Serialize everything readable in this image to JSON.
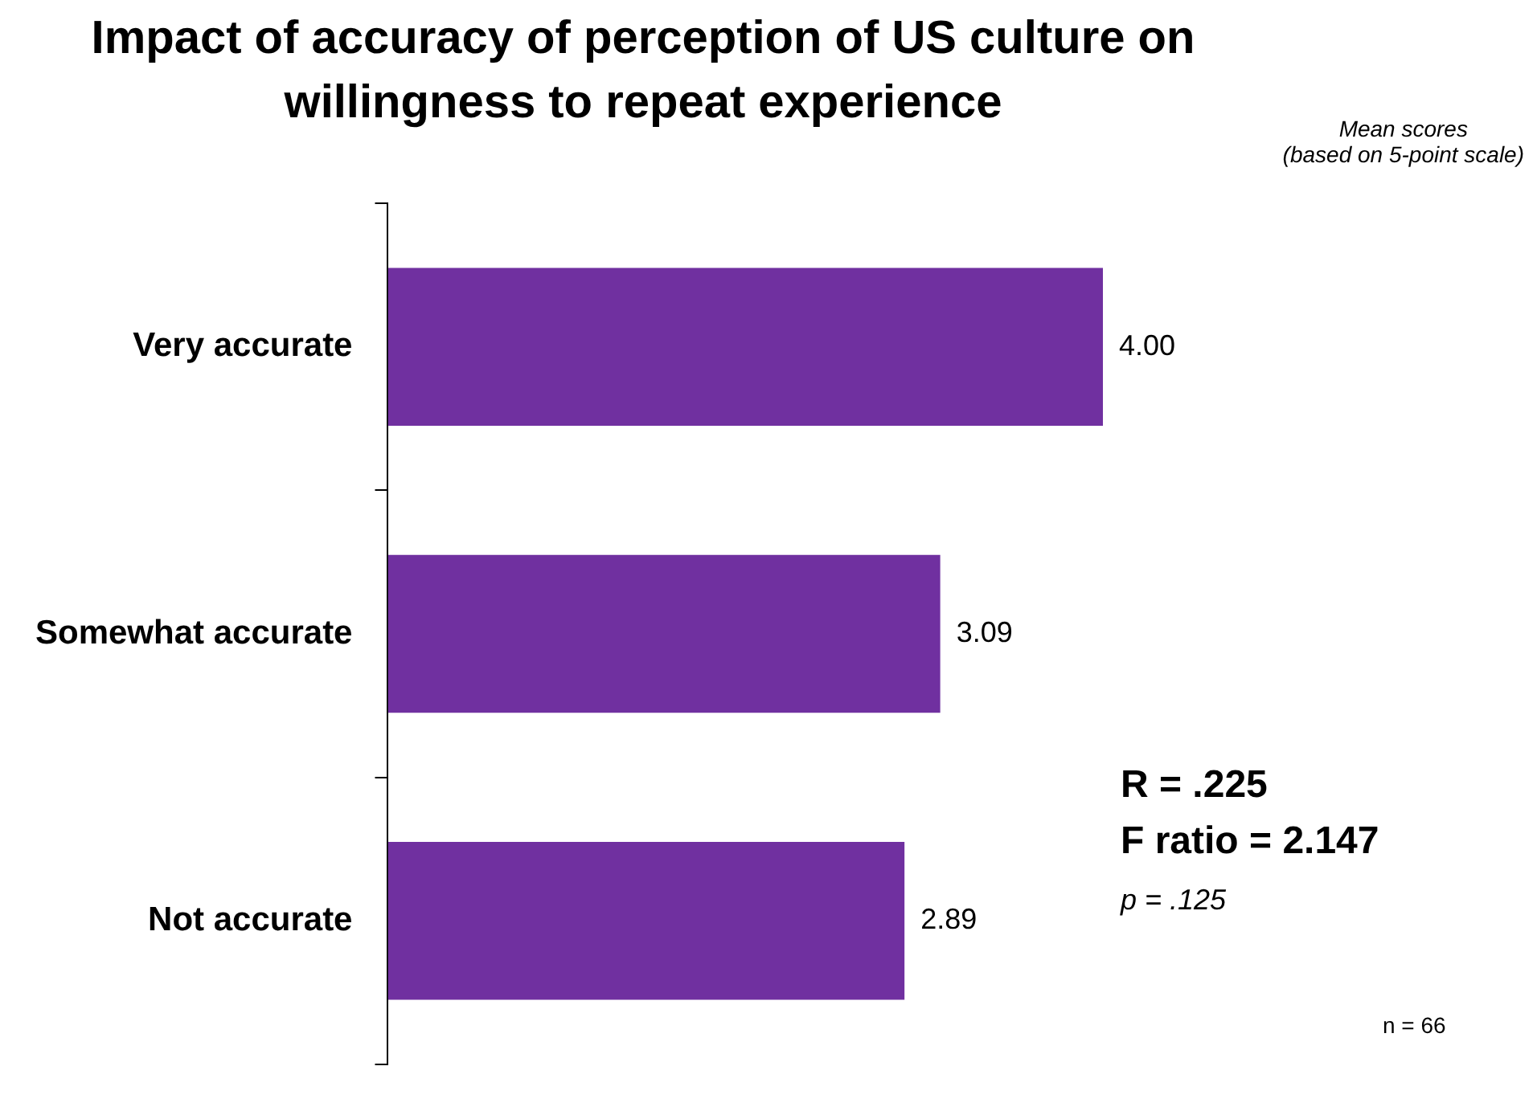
{
  "chart_data": {
    "type": "bar",
    "orientation": "horizontal",
    "title": "Impact of accuracy of perception of US culture on willingness to repeat experience",
    "subtitle": "Mean scores\n(based on 5-point scale)",
    "categories": [
      "Very accurate",
      "Somewhat accurate",
      "Not accurate"
    ],
    "values": [
      4.0,
      3.09,
      2.89
    ],
    "value_labels": [
      "4.00",
      "3.09",
      "2.89"
    ],
    "color": "#7030a0",
    "legend": false,
    "annotations": [
      "R = .225",
      "F ratio = 2.147",
      "p = .125",
      "n = 66"
    ]
  }
}
